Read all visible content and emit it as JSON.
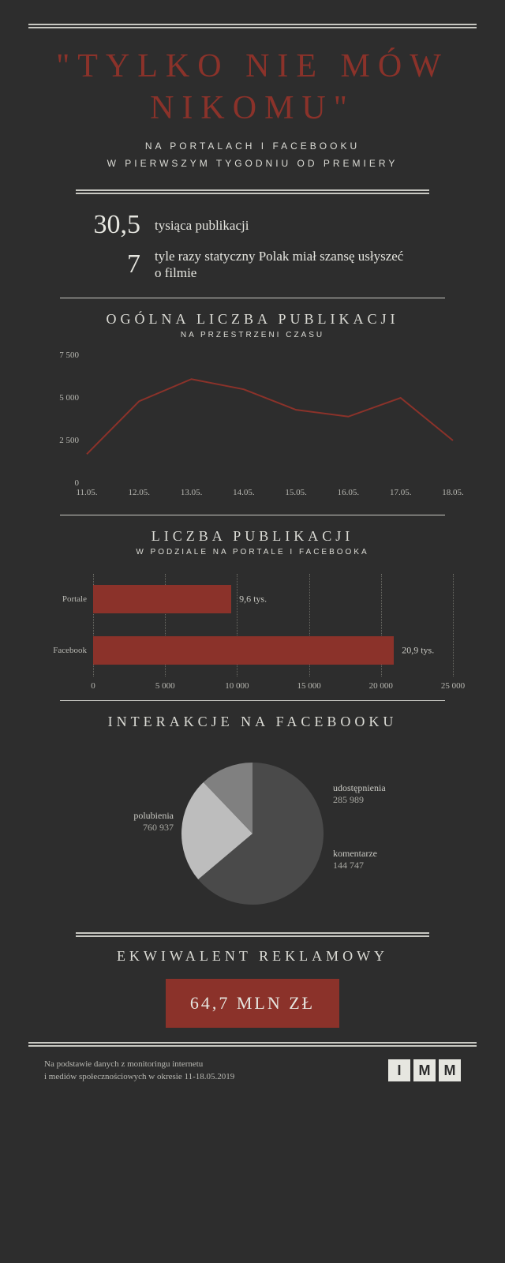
{
  "background_color": "#2d2d2d",
  "accent_color": "#8b322a",
  "text_color": "#c8c8c2",
  "title": "\"TYLKO NIE MÓW NIKOMU\"",
  "subtitle_line1": "NA PORTALACH I FACEBOOKU",
  "subtitle_line2": "W PIERWSZYM TYGODNIU OD PREMIERY",
  "stats": [
    {
      "value": "30,5",
      "label": "tysiąca publikacji"
    },
    {
      "value": "7",
      "label": "tyle razy statyczny Polak miał szansę usłyszeć o filmie"
    }
  ],
  "line_chart": {
    "title": "OGÓLNA LICZBA PUBLIKACJI",
    "subtitle": "NA PRZESTRZENI CZASU",
    "type": "line",
    "x_labels": [
      "11.05.",
      "12.05.",
      "13.05.",
      "14.05.",
      "15.05.",
      "16.05.",
      "17.05.",
      "18.05."
    ],
    "y_ticks": [
      0,
      2500,
      5000,
      7500
    ],
    "y_tick_labels": [
      "0",
      "2 500",
      "5 000",
      "7 500"
    ],
    "ylim": [
      0,
      7500
    ],
    "values": [
      1700,
      4800,
      6100,
      5500,
      4300,
      3900,
      5000,
      2500
    ],
    "line_color": "#8b322a",
    "line_width": 2,
    "label_fontsize": 11
  },
  "bar_chart": {
    "title": "LICZBA PUBLIKACJI",
    "subtitle": "W PODZIALE NA PORTALE I FACEBOOKA",
    "type": "bar-horizontal",
    "categories": [
      "Portale",
      "Facebook"
    ],
    "values": [
      9600,
      20900
    ],
    "value_labels": [
      "9,6 tys.",
      "20,9 tys."
    ],
    "bar_color": "#8b322a",
    "x_ticks": [
      0,
      5000,
      10000,
      15000,
      20000,
      25000
    ],
    "x_tick_labels": [
      "0",
      "5 000",
      "10 000",
      "15 000",
      "20 000",
      "25 000"
    ],
    "xlim": [
      0,
      25000
    ],
    "grid_color": "#6a6a64",
    "label_fontsize": 11
  },
  "pie_chart": {
    "title": "INTERAKCJE NA FACEBOOKU",
    "type": "pie",
    "slices": [
      {
        "label": "polubienia",
        "value": 760937,
        "value_str": "760 937",
        "color": "#4a4a4a"
      },
      {
        "label": "udostępnienia",
        "value": 285989,
        "value_str": "285 989",
        "color": "#bdbdbd"
      },
      {
        "label": "komentarze",
        "value": 144747,
        "value_str": "144 747",
        "color": "#808080"
      }
    ],
    "radius": 90,
    "start_angle": -90
  },
  "ave": {
    "title": "EKWIWALENT REKLAMOWY",
    "value": "64,7 MLN ZŁ"
  },
  "footer": {
    "text_line1": "Na podstawie danych z monitoringu internetu",
    "text_line2": "i mediów społecznościowych w okresie 11-18.05.2019",
    "logo_letters": [
      "I",
      "M",
      "M"
    ]
  }
}
